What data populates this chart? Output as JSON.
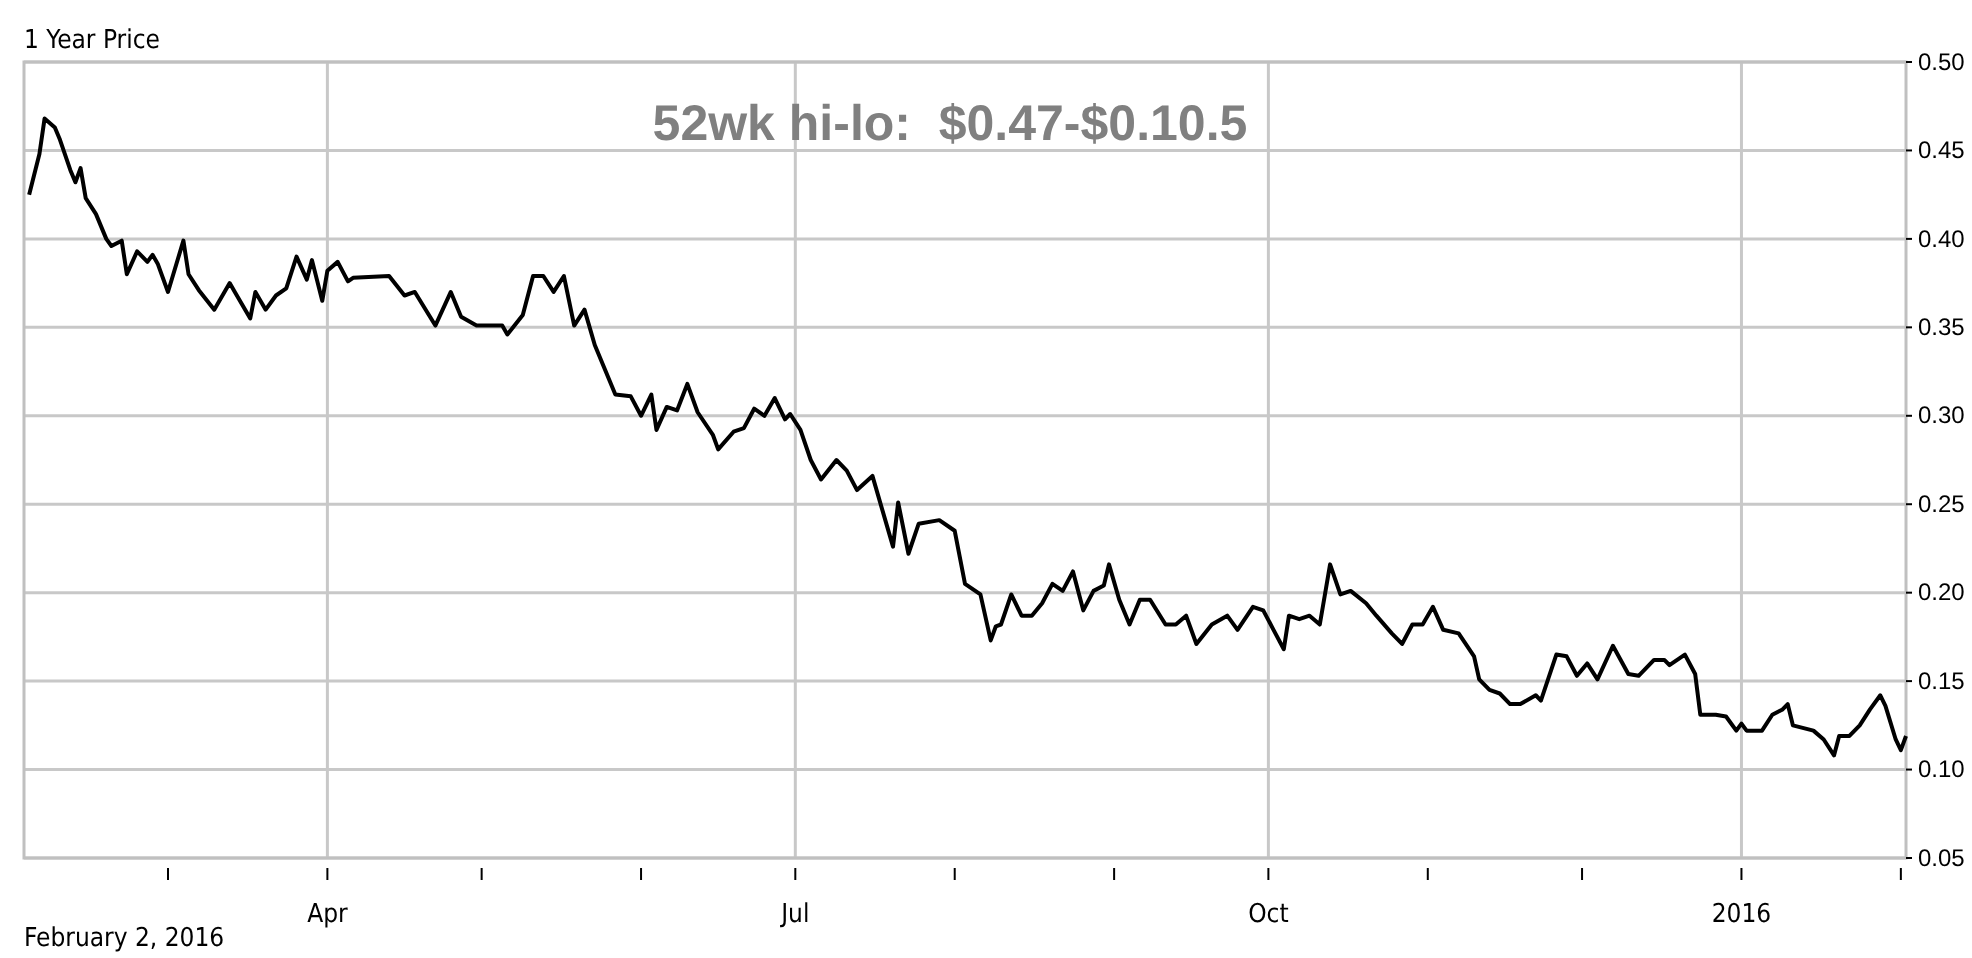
{
  "chart_data": {
    "type": "line",
    "title": "1 Year Price",
    "annotations": [
      "52wk hi-lo:  $0.47-$0.10.5",
      "February 2, 2016"
    ],
    "xlim": [
      "2015-02-01",
      "2016-02-02"
    ],
    "xticks": [
      {
        "value": "2015-03-01",
        "label": null
      },
      {
        "value": "2015-04-01",
        "label": "Apr"
      },
      {
        "value": "2015-05-01",
        "label": null
      },
      {
        "value": "2015-06-01",
        "label": null
      },
      {
        "value": "2015-07-01",
        "label": "Jul"
      },
      {
        "value": "2015-08-01",
        "label": null
      },
      {
        "value": "2015-09-01",
        "label": null
      },
      {
        "value": "2015-10-01",
        "label": "Oct"
      },
      {
        "value": "2015-11-01",
        "label": null
      },
      {
        "value": "2015-12-01",
        "label": null
      },
      {
        "value": "2016-01-01",
        "label": "2016"
      },
      {
        "value": "2016-02-01",
        "label": null
      }
    ],
    "ylim": [
      0.05,
      0.5
    ],
    "yticks": [
      {
        "value": 0.05,
        "label": "0.05"
      },
      {
        "value": 0.1,
        "label": "0.10"
      },
      {
        "value": 0.15,
        "label": "0.15"
      },
      {
        "value": 0.2,
        "label": "0.20"
      },
      {
        "value": 0.25,
        "label": "0.25"
      },
      {
        "value": 0.3,
        "label": "0.30"
      },
      {
        "value": 0.35,
        "label": "0.35"
      },
      {
        "value": 0.4,
        "label": "0.40"
      },
      {
        "value": 0.45,
        "label": "0.45"
      },
      {
        "value": 0.5,
        "label": "0.50"
      }
    ],
    "grid": true,
    "marker": "none",
    "line_style": "solid",
    "x": [
      "2015-02-02",
      "2015-02-04",
      "2015-02-05",
      "2015-02-07",
      "2015-02-08",
      "2015-02-10",
      "2015-02-11",
      "2015-02-12",
      "2015-02-13",
      "2015-02-15",
      "2015-02-17",
      "2015-02-18",
      "2015-02-20",
      "2015-02-21",
      "2015-02-23",
      "2015-02-25",
      "2015-02-26",
      "2015-02-27",
      "2015-03-01",
      "2015-03-04",
      "2015-03-05",
      "2015-03-07",
      "2015-03-10",
      "2015-03-13",
      "2015-03-14",
      "2015-03-17",
      "2015-03-18",
      "2015-03-20",
      "2015-03-22",
      "2015-03-24",
      "2015-03-26",
      "2015-03-28",
      "2015-03-29",
      "2015-03-31",
      "2015-04-01",
      "2015-04-03",
      "2015-04-05",
      "2015-04-06",
      "2015-04-13",
      "2015-04-16",
      "2015-04-18",
      "2015-04-22",
      "2015-04-25",
      "2015-04-27",
      "2015-04-30",
      "2015-05-05",
      "2015-05-06",
      "2015-05-09",
      "2015-05-11",
      "2015-05-13",
      "2015-05-15",
      "2015-05-17",
      "2015-05-19",
      "2015-05-21",
      "2015-05-23",
      "2015-05-25",
      "2015-05-27",
      "2015-05-30",
      "2015-06-01",
      "2015-06-03",
      "2015-06-04",
      "2015-06-06",
      "2015-06-08",
      "2015-06-10",
      "2015-06-12",
      "2015-06-15",
      "2015-06-16",
      "2015-06-19",
      "2015-06-21",
      "2015-06-23",
      "2015-06-25",
      "2015-06-27",
      "2015-06-29",
      "2015-06-30",
      "2015-07-02",
      "2015-07-04",
      "2015-07-06",
      "2015-07-09",
      "2015-07-11",
      "2015-07-13",
      "2015-07-16",
      "2015-07-20",
      "2015-07-21",
      "2015-07-23",
      "2015-07-25",
      "2015-07-29",
      "2015-08-01",
      "2015-08-03",
      "2015-08-06",
      "2015-08-08",
      "2015-08-09",
      "2015-08-10",
      "2015-08-12",
      "2015-08-14",
      "2015-08-16",
      "2015-08-18",
      "2015-08-20",
      "2015-08-22",
      "2015-08-24",
      "2015-08-26",
      "2015-08-28",
      "2015-08-30",
      "2015-08-31",
      "2015-09-02",
      "2015-09-04",
      "2015-09-06",
      "2015-09-08",
      "2015-09-11",
      "2015-09-13",
      "2015-09-15",
      "2015-09-17",
      "2015-09-20",
      "2015-09-23",
      "2015-09-25",
      "2015-09-28",
      "2015-09-30",
      "2015-10-02",
      "2015-10-04",
      "2015-10-05",
      "2015-10-07",
      "2015-10-09",
      "2015-10-11",
      "2015-10-13",
      "2015-10-15",
      "2015-10-17",
      "2015-10-20",
      "2015-10-22",
      "2015-10-25",
      "2015-10-27",
      "2015-10-29",
      "2015-10-31",
      "2015-11-02",
      "2015-11-04",
      "2015-11-07",
      "2015-11-10",
      "2015-11-11",
      "2015-11-13",
      "2015-11-15",
      "2015-11-17",
      "2015-11-19",
      "2015-11-22",
      "2015-11-23",
      "2015-11-26",
      "2015-11-28",
      "2015-11-30",
      "2015-12-02",
      "2015-12-04",
      "2015-12-07",
      "2015-12-10",
      "2015-12-12",
      "2015-12-15",
      "2015-12-17",
      "2015-12-18",
      "2015-12-21",
      "2015-12-23",
      "2015-12-24",
      "2015-12-27",
      "2015-12-29",
      "2015-12-31",
      "2016-01-01",
      "2016-01-02",
      "2016-01-05",
      "2016-01-07",
      "2016-01-09",
      "2016-01-10",
      "2016-01-11",
      "2016-01-15",
      "2016-01-17",
      "2016-01-19",
      "2016-01-20",
      "2016-01-22",
      "2016-01-24",
      "2016-01-26",
      "2016-01-28",
      "2016-01-29",
      "2016-01-31",
      "2016-02-01",
      "2016-02-02"
    ],
    "series": [
      {
        "color": "#000000",
        "values": [
          0.425,
          0.448,
          0.468,
          0.463,
          0.456,
          0.439,
          0.432,
          0.44,
          0.423,
          0.414,
          0.4,
          0.396,
          0.399,
          0.38,
          0.393,
          0.387,
          0.391,
          0.386,
          0.37,
          0.399,
          0.38,
          0.371,
          0.36,
          0.375,
          0.37,
          0.355,
          0.37,
          0.36,
          0.368,
          0.372,
          0.39,
          0.377,
          0.388,
          0.365,
          0.382,
          0.387,
          0.376,
          0.378,
          0.379,
          0.368,
          0.37,
          0.351,
          0.37,
          0.356,
          0.351,
          0.351,
          0.346,
          0.357,
          0.379,
          0.379,
          0.37,
          0.379,
          0.351,
          0.36,
          0.34,
          0.326,
          0.312,
          0.311,
          0.3,
          0.312,
          0.292,
          0.305,
          0.303,
          0.318,
          0.302,
          0.289,
          0.281,
          0.291,
          0.293,
          0.304,
          0.3,
          0.31,
          0.298,
          0.301,
          0.292,
          0.275,
          0.264,
          0.275,
          0.269,
          0.258,
          0.266,
          0.226,
          0.251,
          0.222,
          0.239,
          0.241,
          0.235,
          0.205,
          0.199,
          0.173,
          0.181,
          0.182,
          0.199,
          0.187,
          0.187,
          0.194,
          0.205,
          0.201,
          0.212,
          0.19,
          0.201,
          0.204,
          0.216,
          0.196,
          0.182,
          0.196,
          0.196,
          0.182,
          0.182,
          0.187,
          0.171,
          0.182,
          0.187,
          0.179,
          0.192,
          0.19,
          0.179,
          0.168,
          0.187,
          0.185,
          0.187,
          0.182,
          0.216,
          0.199,
          0.201,
          0.194,
          0.187,
          0.177,
          0.171,
          0.182,
          0.182,
          0.192,
          0.179,
          0.177,
          0.164,
          0.151,
          0.145,
          0.143,
          0.137,
          0.137,
          0.142,
          0.139,
          0.165,
          0.164,
          0.153,
          0.16,
          0.151,
          0.17,
          0.154,
          0.153,
          0.162,
          0.162,
          0.159,
          0.165,
          0.154,
          0.131,
          0.131,
          0.13,
          0.122,
          0.126,
          0.122,
          0.122,
          0.131,
          0.134,
          0.137,
          0.125,
          0.122,
          0.117,
          0.108,
          0.119,
          0.119,
          0.125,
          0.134,
          0.142,
          0.136,
          0.117,
          0.111,
          0.119
        ]
      }
    ]
  }
}
